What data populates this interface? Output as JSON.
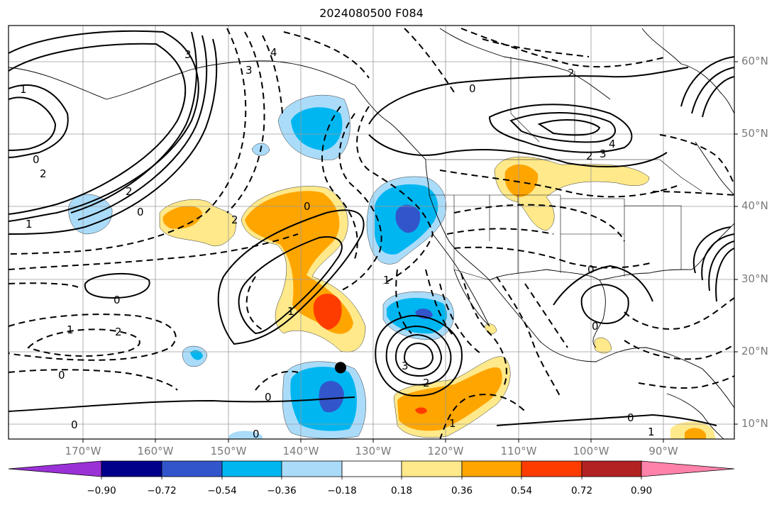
{
  "title": "2024080500 F084",
  "map": {
    "lat_labels": [
      "60°N",
      "50°N",
      "40°N",
      "30°N",
      "20°N",
      "10°N"
    ],
    "lon_labels": [
      "170°W",
      "160°W",
      "150°W",
      "140°W",
      "130°W",
      "120°W",
      "110°W",
      "100°W",
      "90°W"
    ],
    "marker": {
      "lon": -134.5,
      "lat": 17.8,
      "color": "#000000"
    },
    "contour_labels": [
      "0",
      "0",
      "0",
      "0",
      "0",
      "0",
      "0",
      "0",
      "0",
      "0",
      "0",
      "0",
      "1",
      "1",
      "1",
      "1",
      "2",
      "2",
      "2",
      "2",
      "2",
      "3",
      "3",
      "3",
      "4",
      "4",
      "1",
      "1",
      "1",
      "2",
      "2",
      "3"
    ]
  },
  "colorbar": {
    "tick_labels": [
      "−0.90",
      "−0.72",
      "−0.54",
      "−0.36",
      "−0.18",
      "0.18",
      "0.36",
      "0.54",
      "0.72",
      "0.90"
    ],
    "colors": [
      "#9a31d6",
      "#00008b",
      "#3355cc",
      "#00b6f0",
      "#aadcfa",
      "#ffffff",
      "#ffe98a",
      "#ffa500",
      "#ff3c00",
      "#b22222",
      "#ff82aa"
    ]
  }
}
